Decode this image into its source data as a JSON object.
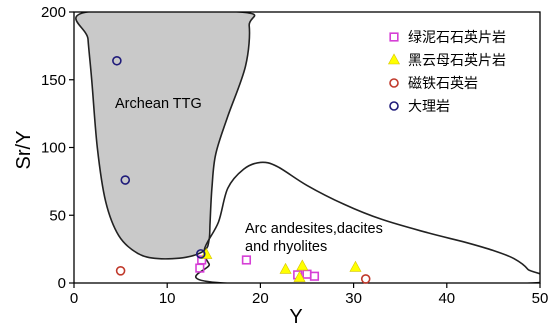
{
  "chart_data": {
    "type": "scatter",
    "xlabel": "Y",
    "ylabel": "Sr/Y",
    "xlim": [
      0,
      50
    ],
    "ylim": [
      0,
      200
    ],
    "x_ticks": [
      "0",
      "10",
      "20",
      "30",
      "40",
      "50"
    ],
    "y_ticks": [
      "0",
      "50",
      "100",
      "150",
      "200"
    ],
    "grid": false,
    "legend_position": "top-right",
    "regions": [
      {
        "label": "Archean TTG",
        "fill": "#c9c9c9",
        "boundary": [
          [
            1.4,
            200
          ],
          [
            17.8,
            200
          ],
          [
            18.8,
            190
          ],
          [
            18.4,
            160
          ],
          [
            16.5,
            123
          ],
          [
            15.2,
            95
          ],
          [
            14.8,
            70
          ],
          [
            14.6,
            45
          ],
          [
            14.5,
            32
          ],
          [
            14.0,
            24
          ],
          [
            12.0,
            19
          ],
          [
            9.0,
            18
          ],
          [
            6.8,
            22
          ],
          [
            4.8,
            35
          ],
          [
            3.4,
            60
          ],
          [
            2.5,
            100
          ],
          [
            1.9,
            150
          ],
          [
            1.5,
            180
          ]
        ]
      },
      {
        "label": "Arc andesites,dacites\nand rhyolites",
        "fill": "none",
        "boundary": [
          [
            14.0,
            25
          ],
          [
            15.5,
            45
          ],
          [
            16.5,
            70
          ],
          [
            18.2,
            84
          ],
          [
            20.0,
            89
          ],
          [
            21.8,
            86
          ],
          [
            25.0,
            72
          ],
          [
            29.0,
            58
          ],
          [
            33.0,
            47
          ],
          [
            38.0,
            37
          ],
          [
            42.0,
            30
          ],
          [
            45.0,
            24
          ],
          [
            47.2,
            18
          ],
          [
            48.7,
            10
          ],
          [
            49.2,
            0
          ],
          [
            16.0,
            0
          ],
          [
            14.5,
            14
          ]
        ]
      }
    ],
    "overlap_fill": "#e8e8e8",
    "series": [
      {
        "name": "绿泥石石英片岩",
        "marker": "square",
        "color": "#d63fd6",
        "points": [
          [
            13.5,
            11
          ],
          [
            13.7,
            17
          ],
          [
            18.5,
            17
          ],
          [
            24.0,
            6
          ],
          [
            25.0,
            6.5
          ],
          [
            25.8,
            5
          ]
        ]
      },
      {
        "name": "黑云母石英片岩",
        "marker": "triangle",
        "color": "#ffff00",
        "points": [
          [
            14.2,
            21
          ],
          [
            22.7,
            10
          ],
          [
            24.2,
            4
          ],
          [
            24.5,
            12.5
          ],
          [
            30.2,
            11.5
          ]
        ]
      },
      {
        "name": "磁铁石英岩",
        "marker": "circle",
        "color": "#c0392b",
        "points": [
          [
            5.0,
            9
          ],
          [
            31.3,
            3
          ]
        ]
      },
      {
        "name": "大理岩",
        "marker": "circle",
        "color": "#1f1b7a",
        "points": [
          [
            4.6,
            164
          ],
          [
            5.5,
            76
          ],
          [
            13.6,
            21.5
          ]
        ]
      }
    ]
  }
}
